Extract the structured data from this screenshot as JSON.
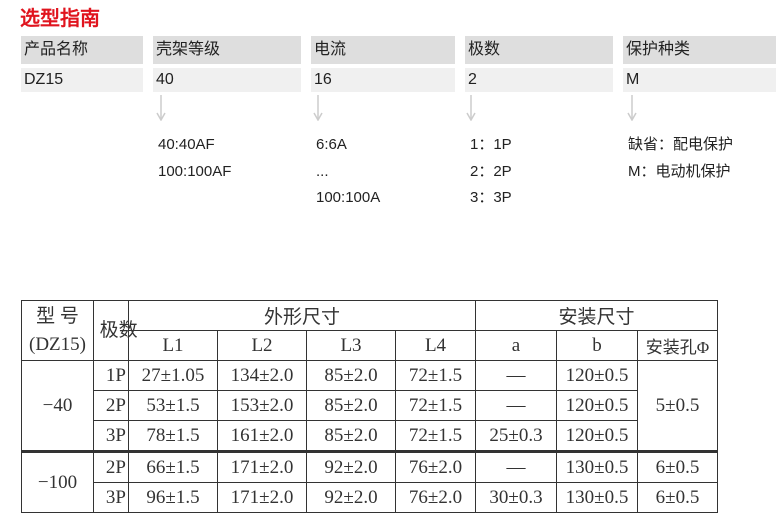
{
  "title": "选型指南",
  "guide": [
    {
      "header": "产品名称",
      "value": "DZ15",
      "options": []
    },
    {
      "header": "壳架等级",
      "value": "40",
      "options": [
        "40:40AF",
        "100:100AF"
      ]
    },
    {
      "header": "电流",
      "value": "16",
      "options": [
        "6:6A",
        "...",
        "100:100A"
      ]
    },
    {
      "header": "极数",
      "value": "2",
      "options": [
        "1：1P",
        "2：2P",
        "3：3P"
      ]
    },
    {
      "header": "保护种类",
      "value": "M",
      "options": [
        "缺省：配电保护",
        "M：电动机保护"
      ]
    }
  ],
  "table": {
    "model_header": "型 号",
    "model_sub": "(DZ15)",
    "poles_header": "极数",
    "outline_header": "外形尺寸",
    "mount_header": "安装尺寸",
    "columns": [
      "L1",
      "L2",
      "L3",
      "L4",
      "a",
      "b",
      "安装孔Φ"
    ],
    "groups": [
      {
        "model": "−40",
        "hole": "5±0.5",
        "rows": [
          [
            "1P",
            "27±1.05",
            "134±2.0",
            "85±2.0",
            "72±1.5",
            "—",
            "120±0.5"
          ],
          [
            "2P",
            "53±1.5",
            "153±2.0",
            "85±2.0",
            "72±1.5",
            "—",
            "120±0.5"
          ],
          [
            "3P",
            "78±1.5",
            "161±2.0",
            "85±2.0",
            "72±1.5",
            "25±0.3",
            "120±0.5"
          ]
        ]
      },
      {
        "model": "−100",
        "rows": [
          [
            "2P",
            "66±1.5",
            "171±2.0",
            "92±2.0",
            "76±2.0",
            "—",
            "130±0.5",
            "6±0.5"
          ],
          [
            "3P",
            "96±1.5",
            "171±2.0",
            "92±2.0",
            "76±2.0",
            "30±0.3",
            "130±0.5",
            "6±0.5"
          ]
        ]
      }
    ]
  }
}
